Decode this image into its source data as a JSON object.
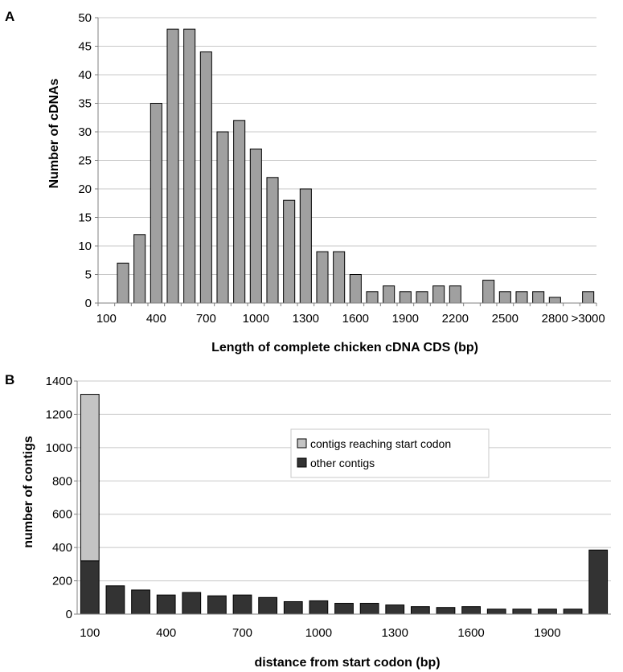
{
  "chart_data": [
    {
      "panel": "A",
      "type": "bar",
      "xlabel": "Length of complete chicken cDNA CDS (bp)",
      "ylabel": "Number of cDNAs",
      "ylim": [
        0,
        50
      ],
      "yticks": [
        0,
        5,
        10,
        15,
        20,
        25,
        30,
        35,
        40,
        45,
        50
      ],
      "xticks": [
        "100",
        "400",
        "700",
        "1000",
        "1300",
        "1600",
        "1900",
        "2200",
        "2500",
        "2800",
        ">3000"
      ],
      "categories": [
        "200",
        "300",
        "400",
        "500",
        "600",
        "700",
        "800",
        "900",
        "1000",
        "1100",
        "1200",
        "1300",
        "1400",
        "1500",
        "1600",
        "1700",
        "1800",
        "1900",
        "2000",
        "2100",
        "2200",
        "2300",
        "2400",
        "2500",
        "2600",
        "2700",
        "2800",
        "2900",
        ">3000"
      ],
      "values": [
        7,
        12,
        35,
        48,
        48,
        44,
        30,
        32,
        27,
        22,
        18,
        20,
        9,
        9,
        5,
        2,
        3,
        2,
        2,
        3,
        3,
        0,
        4,
        2,
        2,
        2,
        1,
        0,
        2
      ],
      "color": "#a0a0a0",
      "grid": true
    },
    {
      "panel": "B",
      "type": "bar",
      "stacked": true,
      "xlabel": "distance from start codon (bp)",
      "ylabel": "number of contigs",
      "ylim": [
        0,
        1400
      ],
      "yticks": [
        0,
        200,
        400,
        600,
        800,
        1000,
        1200,
        1400
      ],
      "xticks": [
        "100",
        "400",
        "700",
        "1000",
        "1300",
        "1600",
        "1900"
      ],
      "categories": [
        "100",
        "200",
        "300",
        "400",
        "500",
        "600",
        "700",
        "800",
        "900",
        "1000",
        "1100",
        "1200",
        "1300",
        "1400",
        "1500",
        "1600",
        "1700",
        "1800",
        "1900",
        "2000",
        "2100"
      ],
      "series": [
        {
          "name": "other contigs",
          "color": "#333333",
          "values": [
            320,
            170,
            145,
            115,
            130,
            110,
            115,
            100,
            75,
            80,
            65,
            65,
            55,
            45,
            40,
            45,
            30,
            30,
            30,
            30,
            385
          ]
        },
        {
          "name": "contigs reaching start codon",
          "color": "#c4c4c4",
          "values": [
            1000,
            0,
            0,
            0,
            0,
            0,
            0,
            0,
            0,
            0,
            0,
            0,
            0,
            0,
            0,
            0,
            0,
            0,
            0,
            0,
            0
          ]
        }
      ],
      "legend_order": [
        "contigs reaching start codon",
        "other contigs"
      ],
      "legend_position": "center-right",
      "grid": true
    }
  ]
}
